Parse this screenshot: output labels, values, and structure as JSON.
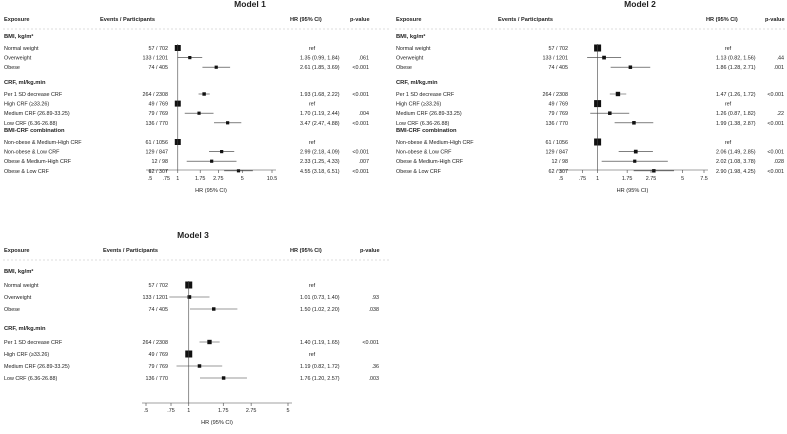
{
  "chart_data": [
    {
      "type": "forest",
      "title": "Model 1",
      "headers": {
        "exposure": "Exposure",
        "events": "Events / Participants",
        "hr": "HR (95% CI)",
        "p": "p-value"
      },
      "xlabel": "HR (95% CI)",
      "ticks": [
        ".5",
        ".75",
        "1",
        "1.75",
        "2.75",
        "5",
        "10.5"
      ],
      "xlim": [
        0.5,
        10.5
      ],
      "sections": [
        {
          "title": "BMI, kg/m²",
          "rows": [
            {
              "label": "Normal weight",
              "events": "57 / 702",
              "hr_text": "ref",
              "p": "",
              "hr": 1.0,
              "lo": null,
              "hi": null
            },
            {
              "label": "Overweight",
              "events": "133 / 1201",
              "hr_text": "1.35 (0.99, 1.84)",
              "p": ".061",
              "hr": 1.35,
              "lo": 0.99,
              "hi": 1.84
            },
            {
              "label": "Obese",
              "events": "74 / 405",
              "hr_text": "2.61 (1.85, 3.69)",
              "p": "<0.001",
              "hr": 2.61,
              "lo": 1.85,
              "hi": 3.69
            }
          ]
        },
        {
          "title": "CRF, ml/kg.min",
          "rows": [
            {
              "label": "Per 1 SD decrease CRF",
              "events": "264 / 2308",
              "hr_text": "1.93 (1.68, 2.22)",
              "p": "<0.001",
              "hr": 1.93,
              "lo": 1.68,
              "hi": 2.22
            },
            {
              "label": "High CRF (≥33.26)",
              "events": "49 / 769",
              "hr_text": "ref",
              "p": "",
              "hr": 1.0,
              "lo": null,
              "hi": null
            },
            {
              "label": "Medium CRF (26.89-33.25)",
              "events": "79 / 769",
              "hr_text": "1.70 (1.19, 2.44)",
              "p": ".004",
              "hr": 1.7,
              "lo": 1.19,
              "hi": 2.44
            },
            {
              "label": "Low CRF (6.36-26.88)",
              "events": "136 / 770",
              "hr_text": "3.47 (2.47, 4.88)",
              "p": "<0.001",
              "hr": 3.47,
              "lo": 2.47,
              "hi": 4.88
            }
          ]
        },
        {
          "title": "BMI-CRF combination",
          "rows": [
            {
              "label": "Non-obese & Medium-High CRF",
              "events": "61 / 1056",
              "hr_text": "ref",
              "p": "",
              "hr": 1.0,
              "lo": null,
              "hi": null
            },
            {
              "label": "Non-obese & Low CRF",
              "events": "129 / 847",
              "hr_text": "2.99 (2.18, 4.09)",
              "p": "<0.001",
              "hr": 2.99,
              "lo": 2.18,
              "hi": 4.09
            },
            {
              "label": "Obese & Medium-High CRF",
              "events": "12 / 98",
              "hr_text": "2.33 (1.25, 4.33)",
              "p": ".007",
              "hr": 2.33,
              "lo": 1.25,
              "hi": 4.33
            },
            {
              "label": "Obese & Low CRF",
              "events": "62 / 307",
              "hr_text": "4.55 (3.18, 6.51)",
              "p": "<0.001",
              "hr": 4.55,
              "lo": 3.18,
              "hi": 6.51
            }
          ]
        }
      ]
    },
    {
      "type": "forest",
      "title": "Model 2",
      "headers": {
        "exposure": "Exposure",
        "events": "Events / Participants",
        "hr": "HR (95% CI)",
        "p": "p-value"
      },
      "xlabel": "HR (95% CI)",
      "ticks": [
        ".5",
        ".75",
        "1",
        "1.75",
        "2.75",
        "5",
        "7.5"
      ],
      "xlim": [
        0.5,
        7.5
      ],
      "sections": [
        {
          "title": "BMI, kg/m²",
          "rows": [
            {
              "label": "Normal weight",
              "events": "57 / 702",
              "hr_text": "ref",
              "p": "",
              "hr": 1.0,
              "lo": null,
              "hi": null
            },
            {
              "label": "Overweight",
              "events": "133 / 1201",
              "hr_text": "1.13 (0.82, 1.56)",
              "p": ".44",
              "hr": 1.13,
              "lo": 0.82,
              "hi": 1.56
            },
            {
              "label": "Obese",
              "events": "74 / 405",
              "hr_text": "1.86 (1.28, 2.71)",
              "p": ".001",
              "hr": 1.86,
              "lo": 1.28,
              "hi": 2.71
            }
          ]
        },
        {
          "title": "CRF, ml/kg.min",
          "rows": [
            {
              "label": "Per 1 SD decrease CRF",
              "events": "264 / 2308",
              "hr_text": "1.47 (1.26, 1.72)",
              "p": "<0.001",
              "hr": 1.47,
              "lo": 1.26,
              "hi": 1.72
            },
            {
              "label": "High CRF (≥33.26)",
              "events": "49 / 769",
              "hr_text": "ref",
              "p": "",
              "hr": 1.0,
              "lo": null,
              "hi": null
            },
            {
              "label": "Medium CRF (26.89-33.25)",
              "events": "79 / 769",
              "hr_text": "1.26 (0.87, 1.82)",
              "p": ".22",
              "hr": 1.26,
              "lo": 0.87,
              "hi": 1.82
            },
            {
              "label": "Low CRF (6.36-26.88)",
              "events": "136 / 770",
              "hr_text": "1.99 (1.38, 2.87)",
              "p": "<0.001",
              "hr": 1.99,
              "lo": 1.38,
              "hi": 2.87
            }
          ]
        },
        {
          "title": "BMI-CRF combination",
          "rows": [
            {
              "label": "Non-obese & Medium-High CRF",
              "events": "61 / 1056",
              "hr_text": "ref",
              "p": "",
              "hr": 1.0,
              "lo": null,
              "hi": null
            },
            {
              "label": "Non-obese & Low CRF",
              "events": "129 / 847",
              "hr_text": "2.06 (1.49, 2.85)",
              "p": "<0.001",
              "hr": 2.06,
              "lo": 1.49,
              "hi": 2.85
            },
            {
              "label": "Obese & Medium-High CRF",
              "events": "12 / 98",
              "hr_text": "2.02 (1.08, 3.78)",
              "p": ".028",
              "hr": 2.02,
              "lo": 1.08,
              "hi": 3.78
            },
            {
              "label": "Obese & Low CRF",
              "events": "62 / 307",
              "hr_text": "2.90 (1.98, 4.25)",
              "p": "<0.001",
              "hr": 2.9,
              "lo": 1.98,
              "hi": 4.25
            }
          ]
        }
      ]
    },
    {
      "type": "forest",
      "title": "Model 3",
      "headers": {
        "exposure": "Exposure",
        "events": "Events / Participants",
        "hr": "HR (95% CI)",
        "p": "p-value"
      },
      "xlabel": "HR (95% CI)",
      "ticks": [
        ".5",
        ".75",
        "1",
        "1.75",
        "2.75",
        "5"
      ],
      "xlim": [
        0.5,
        5
      ],
      "sections": [
        {
          "title": "BMI, kg/m²",
          "rows": [
            {
              "label": "Normal weight",
              "events": "57 / 702",
              "hr_text": "ref",
              "p": "",
              "hr": 1.0,
              "lo": null,
              "hi": null
            },
            {
              "label": "Overweight",
              "events": "133 / 1201",
              "hr_text": "1.01 (0.73, 1.40)",
              "p": ".93",
              "hr": 1.01,
              "lo": 0.73,
              "hi": 1.4
            },
            {
              "label": "Obese",
              "events": "74 / 405",
              "hr_text": "1.50 (1.02, 2.20)",
              "p": ".038",
              "hr": 1.5,
              "lo": 1.02,
              "hi": 2.2
            }
          ]
        },
        {
          "title": "CRF, ml/kg.min",
          "rows": [
            {
              "label": "Per 1 SD decrease CRF",
              "events": "264 / 2308",
              "hr_text": "1.40 (1.19, 1.65)",
              "p": "<0.001",
              "hr": 1.4,
              "lo": 1.19,
              "hi": 1.65
            },
            {
              "label": "High CRF (≥33.26)",
              "events": "49 / 769",
              "hr_text": "ref",
              "p": "",
              "hr": 1.0,
              "lo": null,
              "hi": null
            },
            {
              "label": "Medium CRF (26.89-33.25)",
              "events": "79 / 769",
              "hr_text": "1.19 (0.82, 1.72)",
              "p": ".36",
              "hr": 1.19,
              "lo": 0.82,
              "hi": 1.72
            },
            {
              "label": "Low CRF (6.36-26.88)",
              "events": "136 / 770",
              "hr_text": "1.76 (1.20, 2.57)",
              "p": ".003",
              "hr": 1.76,
              "lo": 1.2,
              "hi": 2.57
            }
          ]
        }
      ]
    }
  ]
}
